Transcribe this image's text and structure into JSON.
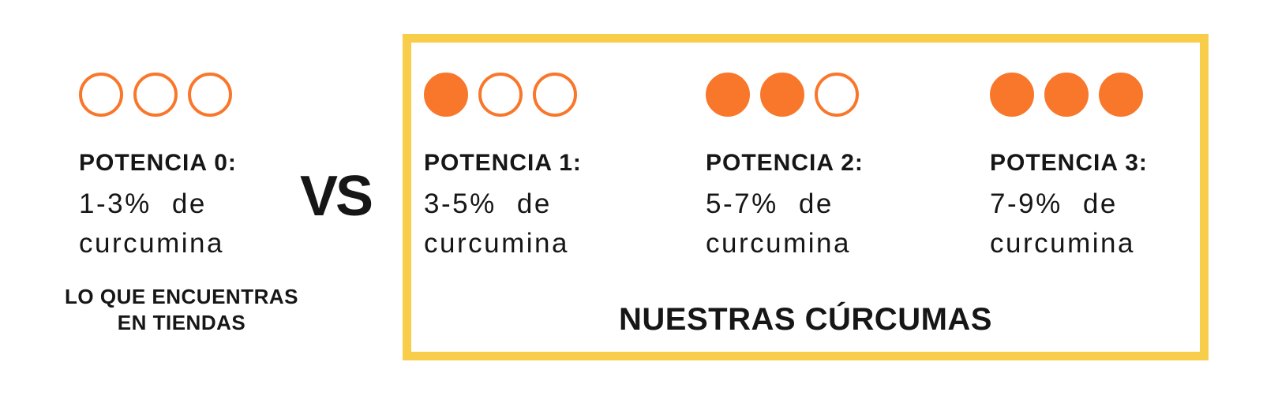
{
  "colors": {
    "orange": "#F8772B",
    "yellow": "#F8CD4A",
    "text": "#161616",
    "background": "#FFFFFF"
  },
  "store_option": {
    "title": "POTENCIA 0:",
    "range_line1": "1-3% de",
    "range_line2": "curcumina",
    "filled_dots": 0,
    "total_dots": 3,
    "note_line1": "LO QUE ENCUENTRAS",
    "note_line2": "EN TIENDAS"
  },
  "vs_label": "VS",
  "our_options": {
    "caption": "NUESTRAS CÚRCUMAS",
    "items": [
      {
        "title": "POTENCIA 1:",
        "range_line1": "3-5% de",
        "range_line2": "curcumina",
        "filled_dots": 1,
        "total_dots": 3
      },
      {
        "title": "POTENCIA 2:",
        "range_line1": "5-7% de",
        "range_line2": "curcumina",
        "filled_dots": 2,
        "total_dots": 3
      },
      {
        "title": "POTENCIA 3:",
        "range_line1": "7-9% de",
        "range_line2": "curcumina",
        "filled_dots": 3,
        "total_dots": 3
      }
    ]
  }
}
